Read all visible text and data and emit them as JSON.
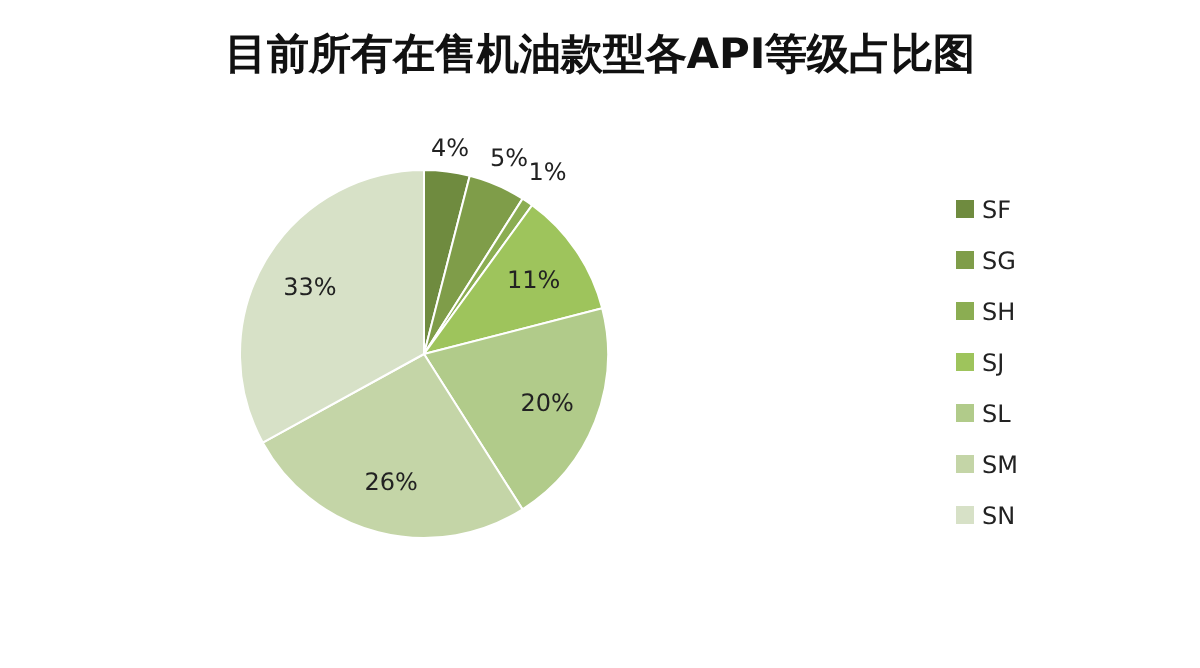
{
  "chart_data": {
    "type": "pie",
    "title": "目前所有在售机油款型各API等级占比图",
    "categories": [
      "SF",
      "SG",
      "SH",
      "SJ",
      "SL",
      "SM",
      "SN"
    ],
    "values": [
      4,
      5,
      1,
      11,
      20,
      26,
      33
    ],
    "value_labels": [
      "4%",
      "5%",
      "1%",
      "11%",
      "20%",
      "26%",
      "33%"
    ],
    "colors": [
      "#6f8b3f",
      "#7f9d49",
      "#8bad52",
      "#9ec45c",
      "#b1cb8a",
      "#c4d5a7",
      "#d7e1c7"
    ],
    "legend": "right"
  }
}
